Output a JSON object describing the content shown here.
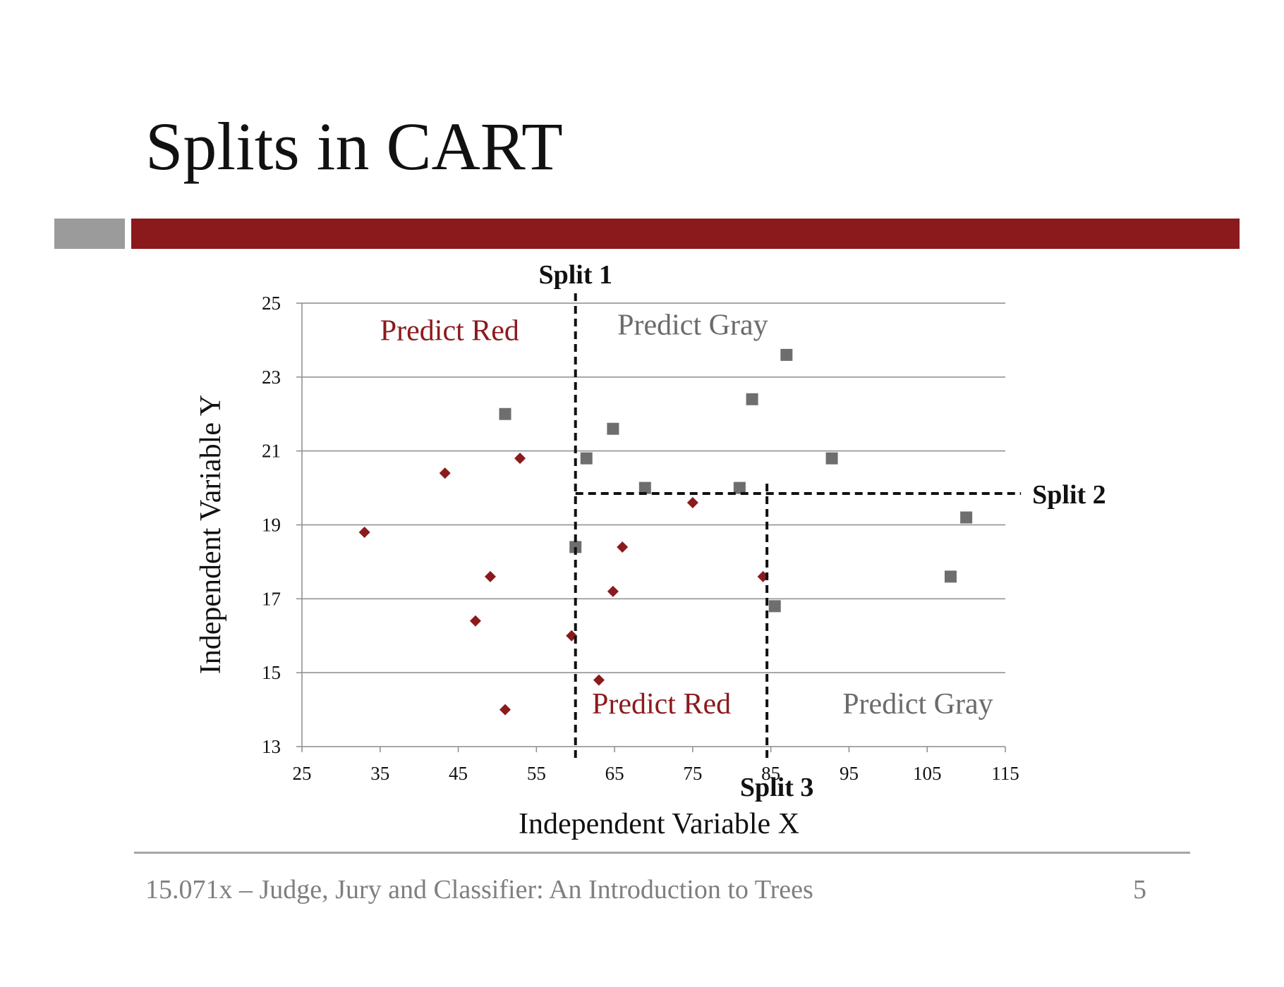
{
  "slide": {
    "title": "Splits in CART",
    "footer": "15.071x – Judge, Jury and Classifier: An Introduction to Trees",
    "page_number": "5"
  },
  "colors": {
    "accent_red": "#8b1a1d",
    "accent_gray": "#9b9b9b",
    "red_points": "#8b1a1d",
    "gray_points": "#6e6e6e",
    "region_gray_text": "#6b6b6b"
  },
  "chart_data": {
    "type": "scatter",
    "xlabel": "Independent Variable X",
    "ylabel": "Independent Variable Y",
    "xlim": [
      25,
      115
    ],
    "ylim": [
      13,
      25
    ],
    "x_ticks": [
      25,
      35,
      45,
      55,
      65,
      75,
      85,
      95,
      105,
      115
    ],
    "y_ticks": [
      13,
      15,
      17,
      19,
      21,
      23,
      25
    ],
    "grid": "horizontal",
    "series": [
      {
        "marker": "diamond",
        "color": "#8b1a1d",
        "points": [
          [
            33,
            18.8
          ],
          [
            43.3,
            20.4
          ],
          [
            52.9,
            20.8
          ],
          [
            49.1,
            17.6
          ],
          [
            47.2,
            16.4
          ],
          [
            51,
            14
          ],
          [
            59.5,
            16
          ],
          [
            63,
            14.8
          ],
          [
            64.8,
            17.2
          ],
          [
            66,
            18.4
          ],
          [
            75,
            19.6
          ],
          [
            84,
            17.6
          ]
        ]
      },
      {
        "marker": "square",
        "color": "#6e6e6e",
        "points": [
          [
            51,
            22
          ],
          [
            60,
            18.4
          ],
          [
            61.4,
            20.8
          ],
          [
            64.8,
            21.6
          ],
          [
            68.9,
            20
          ],
          [
            81,
            20
          ],
          [
            82.6,
            22.4
          ],
          [
            87,
            23.6
          ],
          [
            92.8,
            20.8
          ],
          [
            85.5,
            16.8
          ],
          [
            108,
            17.6
          ],
          [
            110,
            19.2
          ]
        ]
      }
    ],
    "splits": [
      {
        "label": "Split 1",
        "orientation": "vertical",
        "x": 60,
        "y_range": [
          13,
          25
        ]
      },
      {
        "label": "Split 2",
        "orientation": "horizontal",
        "y": 19.85,
        "x_range": [
          60,
          117
        ]
      },
      {
        "label": "Split 3",
        "orientation": "vertical",
        "x": 84.5,
        "y_range": [
          13,
          19.85
        ]
      }
    ],
    "regions": [
      {
        "label": "Predict Red",
        "color": "#8b1a1d",
        "x": 43.9,
        "y": 24.0
      },
      {
        "label": "Predict Gray",
        "color": "#6b6b6b",
        "x": 75,
        "y": 24.15
      },
      {
        "label": "Predict Red",
        "color": "#8b1a1d",
        "x": 71,
        "y": 13.9
      },
      {
        "label": "Predict Gray",
        "color": "#6b6b6b",
        "x": 103.8,
        "y": 13.9
      }
    ]
  }
}
